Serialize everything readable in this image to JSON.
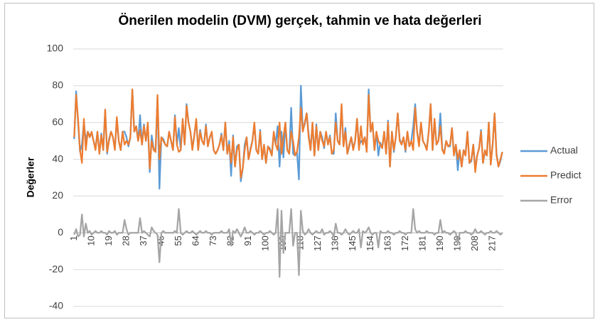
{
  "chart_data": {
    "type": "line",
    "title": "Önerilen modelin (DVM) gerçek, tahmin ve hata değerleri",
    "y_label": "Değerler",
    "categories": [
      "1",
      null,
      null,
      null,
      null,
      null,
      null,
      null,
      null,
      "10",
      null,
      null,
      null,
      null,
      null,
      null,
      null,
      null,
      "19",
      null,
      null,
      null,
      null,
      null,
      null,
      null,
      null,
      "28",
      null,
      null,
      null,
      null,
      null,
      null,
      null,
      null,
      "37",
      null,
      null,
      null,
      null,
      null,
      null,
      null,
      null,
      "46",
      null,
      null,
      null,
      null,
      null,
      null,
      null,
      null,
      "55",
      null,
      null,
      null,
      null,
      null,
      null,
      null,
      null,
      "64",
      null,
      null,
      null,
      null,
      null,
      null,
      null,
      null,
      "73",
      null,
      null,
      null,
      null,
      null,
      null,
      null,
      null,
      "82",
      null,
      null,
      null,
      null,
      null,
      null,
      null,
      null,
      "91",
      null,
      null,
      null,
      null,
      null,
      null,
      null,
      null,
      "100",
      null,
      null,
      null,
      null,
      null,
      null,
      null,
      null,
      "109",
      null,
      null,
      null,
      null,
      null,
      null,
      null,
      null,
      "118",
      null,
      null,
      null,
      null,
      null,
      null,
      null,
      null,
      "127",
      null,
      null,
      null,
      null,
      null,
      null,
      null,
      null,
      "136",
      null,
      null,
      null,
      null,
      null,
      null,
      null,
      null,
      "145",
      null,
      null,
      null,
      null,
      null,
      null,
      null,
      null,
      "154",
      null,
      null,
      null,
      null,
      null,
      null,
      null,
      null,
      "163",
      null,
      null,
      null,
      null,
      null,
      null,
      null,
      null,
      "172",
      null,
      null,
      null,
      null,
      null,
      null,
      null,
      null,
      "181",
      null,
      null,
      null,
      null,
      null,
      null,
      null,
      null,
      "190",
      null,
      null,
      null,
      null,
      null,
      null,
      null,
      null,
      "199",
      null,
      null,
      null,
      null,
      null,
      null,
      null,
      null,
      "208",
      null,
      null,
      null,
      null,
      null,
      null,
      null,
      null,
      "217",
      null,
      null,
      null,
      null,
      null
    ],
    "series": [
      {
        "name": "Actual",
        "color": "#5b9bd5",
        "values": [
          51,
          77,
          60,
          44,
          48,
          60,
          50,
          55,
          53,
          54,
          50,
          46,
          55,
          43,
          54,
          45,
          67,
          43,
          51,
          55,
          52,
          46,
          62,
          50,
          45,
          55,
          55,
          52,
          47,
          52,
          78,
          55,
          58,
          50,
          64,
          48,
          59,
          50,
          59,
          33,
          53,
          46,
          44,
          74,
          24,
          52,
          51,
          48,
          47,
          55,
          50,
          45,
          64,
          48,
          57,
          45,
          61,
          48,
          70,
          60,
          55,
          46,
          53,
          61,
          45,
          56,
          50,
          48,
          59,
          47,
          52,
          54,
          45,
          43,
          45,
          48,
          54,
          45,
          60,
          43,
          50,
          31,
          53,
          36,
          47,
          48,
          28,
          35,
          48,
          52,
          40,
          46,
          50,
          59,
          45,
          43,
          56,
          40,
          47,
          38,
          47,
          46,
          42,
          54,
          48,
          58,
          36,
          55,
          41,
          60,
          45,
          43,
          68,
          43,
          42,
          44,
          29,
          80,
          56,
          59,
          65,
          54,
          45,
          59,
          42,
          59,
          45,
          55,
          52,
          46,
          55,
          48,
          53,
          43,
          43,
          65,
          50,
          48,
          69,
          47,
          57,
          43,
          47,
          52,
          46,
          50,
          62,
          47,
          50,
          49,
          52,
          45,
          78,
          55,
          59,
          45,
          55,
          42,
          49,
          46,
          55,
          43,
          61,
          36,
          55,
          44,
          52,
          65,
          51,
          48,
          52,
          44,
          55,
          47,
          50,
          58,
          70,
          55,
          48,
          60,
          50,
          48,
          46,
          55,
          70,
          45,
          61,
          48,
          50,
          65,
          45,
          44,
          50,
          47,
          47,
          57,
          43,
          48,
          34,
          45,
          36,
          45,
          43,
          55,
          38,
          39,
          48,
          35,
          42,
          46,
          56,
          38,
          44,
          42,
          60,
          38,
          48,
          65,
          43,
          36,
          39,
          44
        ]
      },
      {
        "name": "Predict",
        "color": "#ed7d31",
        "values": [
          52,
          75,
          62,
          45,
          38,
          62,
          45,
          55,
          52,
          55,
          50,
          45,
          55,
          43,
          53,
          45,
          67,
          44,
          50,
          55,
          52,
          45,
          63,
          50,
          45,
          55,
          48,
          50,
          48,
          52,
          78,
          55,
          58,
          50,
          56,
          48,
          58,
          50,
          60,
          35,
          50,
          45,
          44,
          75,
          40,
          52,
          50,
          48,
          47,
          55,
          50,
          45,
          63,
          48,
          44,
          45,
          62,
          48,
          69,
          60,
          55,
          45,
          53,
          62,
          45,
          55,
          50,
          48,
          58,
          47,
          52,
          55,
          45,
          43,
          45,
          48,
          53,
          45,
          60,
          43,
          48,
          38,
          52,
          36,
          45,
          48,
          30,
          35,
          45,
          52,
          40,
          45,
          50,
          60,
          45,
          43,
          55,
          40,
          48,
          38,
          47,
          45,
          42,
          55,
          48,
          45,
          60,
          43,
          52,
          60,
          45,
          43,
          55,
          50,
          42,
          44,
          52,
          68,
          55,
          60,
          65,
          52,
          45,
          60,
          42,
          58,
          45,
          55,
          50,
          47,
          55,
          48,
          52,
          43,
          45,
          60,
          50,
          48,
          70,
          47,
          55,
          43,
          48,
          52,
          45,
          50,
          62,
          45,
          58,
          48,
          52,
          44,
          75,
          55,
          60,
          45,
          55,
          50,
          48,
          46,
          55,
          43,
          60,
          36,
          55,
          45,
          52,
          65,
          50,
          48,
          52,
          45,
          55,
          47,
          50,
          45,
          68,
          55,
          47,
          60,
          50,
          48,
          45,
          55,
          70,
          45,
          62,
          48,
          50,
          58,
          45,
          43,
          50,
          47,
          48,
          57,
          42,
          48,
          40,
          45,
          36,
          45,
          42,
          55,
          38,
          40,
          48,
          33,
          42,
          46,
          55,
          38,
          45,
          42,
          60,
          37,
          48,
          65,
          42,
          36,
          40,
          44
        ]
      },
      {
        "name": "Error",
        "color": "#a5a5a5",
        "values": [
          -1,
          2,
          -2,
          -1,
          10,
          -2,
          5,
          0,
          1,
          -1,
          0,
          1,
          0,
          0,
          1,
          0,
          0,
          -1,
          1,
          0,
          0,
          1,
          -1,
          0,
          0,
          0,
          7,
          2,
          -1,
          0,
          0,
          0,
          0,
          0,
          8,
          0,
          1,
          0,
          -1,
          -2,
          3,
          1,
          0,
          -1,
          -16,
          0,
          1,
          0,
          0,
          0,
          0,
          0,
          1,
          0,
          13,
          0,
          -1,
          0,
          1,
          0,
          0,
          1,
          0,
          -1,
          0,
          1,
          0,
          0,
          1,
          0,
          0,
          -1,
          0,
          0,
          0,
          0,
          1,
          0,
          0,
          0,
          2,
          -7,
          1,
          0,
          2,
          0,
          -2,
          0,
          3,
          0,
          0,
          1,
          0,
          -1,
          0,
          0,
          1,
          0,
          -1,
          0,
          0,
          1,
          0,
          -1,
          0,
          13,
          -24,
          12,
          -11,
          0,
          0,
          0,
          13,
          -7,
          0,
          0,
          -23,
          12,
          1,
          -1,
          0,
          2,
          0,
          -1,
          0,
          1,
          0,
          0,
          2,
          -1,
          0,
          0,
          1,
          0,
          -2,
          5,
          0,
          0,
          -1,
          0,
          2,
          0,
          -1,
          0,
          1,
          0,
          0,
          2,
          -8,
          1,
          0,
          1,
          3,
          0,
          -1,
          0,
          0,
          -8,
          1,
          0,
          0,
          0,
          1,
          0,
          0,
          -1,
          0,
          0,
          1,
          0,
          0,
          -1,
          0,
          0,
          0,
          13,
          2,
          0,
          1,
          0,
          0,
          0,
          1,
          0,
          0,
          0,
          -1,
          0,
          0,
          7,
          0,
          1,
          0,
          0,
          -1,
          0,
          1,
          0,
          -6,
          0,
          0,
          0,
          1,
          0,
          0,
          -1,
          0,
          2,
          0,
          0,
          1,
          0,
          -1,
          0,
          0,
          1,
          0,
          0,
          1,
          0,
          -1,
          0
        ]
      }
    ],
    "ylim": [
      -40,
      100
    ],
    "yticks": [
      -40,
      -20,
      0,
      20,
      40,
      60,
      80,
      100
    ],
    "grid": true,
    "legend": "right"
  }
}
